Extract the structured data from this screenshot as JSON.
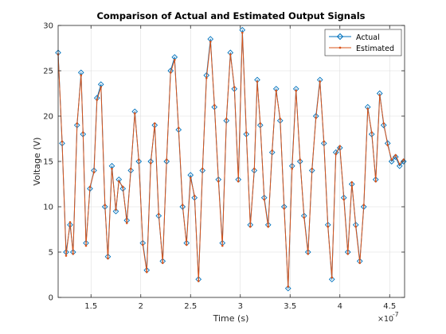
{
  "chart_data": {
    "type": "line",
    "title": "Comparison of Actual and Estimated Output Signals",
    "xlabel": "Time (s)",
    "ylabel": "Voltage (V)",
    "x_exponent_label": "×10",
    "x_exponent_power": "-7",
    "xlim": [
      1.17,
      4.65
    ],
    "ylim": [
      0,
      30
    ],
    "xticks": [
      1.5,
      2,
      2.5,
      3,
      3.5,
      4,
      4.5
    ],
    "xtick_labels": [
      "1.5",
      "2",
      "2.5",
      "3",
      "3.5",
      "4",
      "4.5"
    ],
    "yticks": [
      0,
      5,
      10,
      15,
      20,
      25,
      30
    ],
    "ytick_labels": [
      "0",
      "5",
      "10",
      "15",
      "20",
      "25",
      "30"
    ],
    "grid": true,
    "legend": "top-right",
    "series": [
      {
        "name": "Actual",
        "color": "#0072BD",
        "marker": "diamond",
        "x": [
          1.17,
          1.21,
          1.25,
          1.29,
          1.32,
          1.36,
          1.4,
          1.42,
          1.45,
          1.49,
          1.53,
          1.56,
          1.6,
          1.64,
          1.67,
          1.71,
          1.75,
          1.78,
          1.82,
          1.86,
          1.9,
          1.94,
          1.98,
          2.02,
          2.06,
          2.1,
          2.14,
          2.18,
          2.22,
          2.26,
          2.3,
          2.34,
          2.38,
          2.42,
          2.46,
          2.5,
          2.54,
          2.58,
          2.62,
          2.66,
          2.7,
          2.74,
          2.78,
          2.82,
          2.86,
          2.9,
          2.94,
          2.98,
          3.02,
          3.06,
          3.1,
          3.14,
          3.17,
          3.2,
          3.24,
          3.28,
          3.32,
          3.36,
          3.4,
          3.44,
          3.48,
          3.52,
          3.56,
          3.6,
          3.64,
          3.68,
          3.72,
          3.76,
          3.8,
          3.84,
          3.88,
          3.92,
          3.96,
          4.0,
          4.04,
          4.08,
          4.12,
          4.16,
          4.2,
          4.24,
          4.28,
          4.32,
          4.36,
          4.4,
          4.44,
          4.48,
          4.52,
          4.56,
          4.6,
          4.64
        ],
        "y": [
          27.0,
          17.0,
          5.0,
          8.0,
          5.0,
          19.0,
          24.8,
          18.0,
          6.0,
          12.0,
          14.0,
          22.0,
          23.5,
          10.0,
          4.5,
          14.5,
          9.5,
          13.0,
          12.0,
          8.5,
          14.0,
          20.5,
          15.0,
          6.0,
          3.0,
          15.0,
          19.0,
          9.0,
          4.0,
          15.0,
          25.0,
          26.5,
          18.5,
          10.0,
          6.0,
          13.5,
          11.0,
          2.0,
          14.0,
          24.5,
          28.5,
          21.0,
          13.0,
          6.0,
          19.5,
          27.0,
          23.0,
          13.0,
          29.5,
          18.0,
          8.0,
          14.0,
          24.0,
          19.0,
          11.0,
          8.0,
          16.0,
          23.0,
          19.5,
          10.0,
          1.0,
          14.5,
          23.0,
          15.0,
          9.0,
          5.0,
          14.0,
          20.0,
          24.0,
          17.0,
          8.0,
          2.0,
          16.0,
          16.5,
          11.0,
          5.0,
          12.5,
          8.0,
          4.0,
          10.0,
          21.0,
          18.0,
          13.0,
          22.5,
          19.0,
          17.0,
          15.0,
          15.5,
          14.5,
          15.0
        ]
      },
      {
        "name": "Estimated",
        "color": "#D95319",
        "marker": "point",
        "x": [
          1.17,
          1.21,
          1.25,
          1.29,
          1.32,
          1.36,
          1.4,
          1.42,
          1.45,
          1.49,
          1.53,
          1.56,
          1.6,
          1.64,
          1.67,
          1.71,
          1.75,
          1.78,
          1.82,
          1.86,
          1.9,
          1.94,
          1.98,
          2.02,
          2.06,
          2.1,
          2.14,
          2.18,
          2.22,
          2.26,
          2.3,
          2.34,
          2.38,
          2.42,
          2.46,
          2.5,
          2.54,
          2.58,
          2.62,
          2.66,
          2.7,
          2.74,
          2.78,
          2.82,
          2.86,
          2.9,
          2.94,
          2.98,
          3.02,
          3.06,
          3.1,
          3.14,
          3.17,
          3.2,
          3.24,
          3.28,
          3.32,
          3.36,
          3.4,
          3.44,
          3.48,
          3.52,
          3.56,
          3.6,
          3.64,
          3.68,
          3.72,
          3.76,
          3.8,
          3.84,
          3.88,
          3.92,
          3.96,
          4.0,
          4.04,
          4.08,
          4.12,
          4.16,
          4.2,
          4.24,
          4.28,
          4.32,
          4.36,
          4.4,
          4.44,
          4.48,
          4.52,
          4.56,
          4.6,
          4.64
        ],
        "y": [
          26.8,
          17.2,
          4.6,
          8.3,
          4.8,
          19.2,
          24.5,
          18.2,
          5.7,
          12.2,
          13.8,
          21.8,
          23.2,
          10.2,
          4.3,
          14.2,
          9.7,
          12.8,
          12.2,
          8.2,
          14.2,
          20.3,
          15.2,
          5.8,
          2.8,
          14.8,
          19.2,
          9.2,
          3.8,
          15.2,
          24.8,
          26.2,
          18.7,
          10.2,
          5.8,
          13.2,
          11.2,
          1.8,
          14.2,
          24.2,
          28.2,
          21.2,
          12.8,
          5.7,
          19.7,
          26.8,
          23.2,
          12.8,
          29.2,
          18.2,
          7.8,
          14.2,
          23.8,
          19.2,
          10.8,
          7.8,
          16.2,
          22.8,
          19.7,
          9.8,
          1.2,
          14.2,
          22.8,
          15.2,
          8.8,
          4.8,
          14.2,
          19.8,
          23.8,
          17.2,
          7.8,
          2.2,
          15.8,
          16.7,
          10.8,
          4.8,
          12.7,
          7.8,
          3.8,
          10.2,
          20.8,
          18.2,
          12.8,
          22.3,
          19.2,
          16.8,
          15.2,
          15.7,
          14.7,
          15.2
        ]
      }
    ]
  }
}
